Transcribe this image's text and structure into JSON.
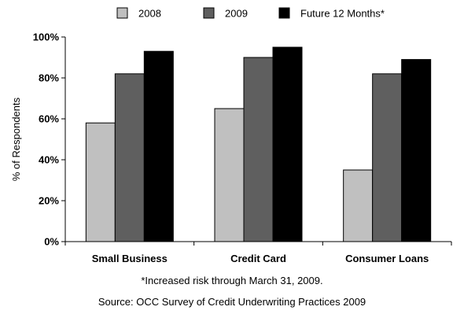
{
  "chart_data": {
    "type": "bar",
    "categories": [
      "Small Business",
      "Credit Card",
      "Consumer Loans"
    ],
    "series": [
      {
        "name": "2008",
        "values": [
          58,
          65,
          35
        ],
        "color": "#c0c0c0"
      },
      {
        "name": "2009",
        "values": [
          82,
          90,
          82
        ],
        "color": "#5f5f5f"
      },
      {
        "name": "Future 12 Months*",
        "values": [
          93,
          95,
          89
        ],
        "color": "#000000"
      }
    ],
    "ylabel": "% of Respondents",
    "ylim": [
      0,
      100
    ],
    "yticks": [
      "0%",
      "20%",
      "40%",
      "60%",
      "80%",
      "100%"
    ],
    "ytick_values": [
      0,
      20,
      40,
      60,
      80,
      100
    ],
    "grid": false,
    "legend_position": "top"
  },
  "footnote": "*Increased risk through March 31, 2009.",
  "source": "Source: OCC Survey of Credit Underwriting Practices 2009"
}
